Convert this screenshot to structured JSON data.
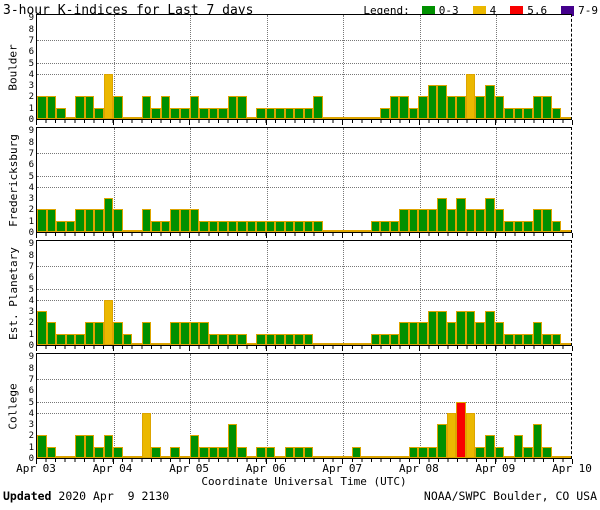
{
  "title": "3-hour K-indices for Last 7 days",
  "legend": {
    "label": "Legend:",
    "items": [
      {
        "label": "0-3",
        "color": "#009000"
      },
      {
        "label": "4",
        "color": "#ebb800"
      },
      {
        "label": "5,6",
        "color": "#f90000"
      },
      {
        "label": "7-9",
        "color": "#44008c"
      }
    ]
  },
  "footer": {
    "updated_label": "Updated",
    "updated_value": " 2020 Apr  9 2130",
    "source": "NOAA/SWPC Boulder, CO USA"
  },
  "chart_data": {
    "type": "bar",
    "title": "3-hour K-indices for Last 7 days",
    "xlabel": "Coordinate Universal Time (UTC)",
    "ylim": [
      0,
      9
    ],
    "grid": "dotted",
    "y_gridlines": [
      4,
      5,
      7
    ],
    "y_tick_labels": [
      "0",
      "1",
      "2",
      "3",
      "4",
      "5",
      "6",
      "7",
      "8",
      "9"
    ],
    "x_tick_labels": [
      "Apr 03",
      "Apr 04",
      "Apr 05",
      "Apr 06",
      "Apr 07",
      "Apr 08",
      "Apr 09",
      "Apr 10"
    ],
    "bars_per_day": 8,
    "bar_outline": "#dda400",
    "color_rules": [
      {
        "range": [
          0,
          3
        ],
        "color": "#009000"
      },
      {
        "range": [
          4,
          4
        ],
        "color": "#ebb800"
      },
      {
        "range": [
          5,
          6
        ],
        "color": "#f90000"
      },
      {
        "range": [
          7,
          9
        ],
        "color": "#44008c"
      }
    ],
    "panels": [
      {
        "station": "Boulder",
        "values": [
          2,
          2,
          1,
          0,
          2,
          2,
          1,
          4,
          2,
          0,
          0,
          2,
          1,
          2,
          1,
          1,
          2,
          1,
          1,
          1,
          2,
          2,
          0,
          1,
          1,
          1,
          1,
          1,
          1,
          2,
          0,
          0,
          0,
          0,
          0,
          0,
          1,
          2,
          2,
          1,
          2,
          3,
          3,
          2,
          2,
          4,
          2,
          3,
          2,
          1,
          1,
          1,
          2,
          2,
          1,
          0
        ]
      },
      {
        "station": "Fredericksburg",
        "values": [
          2,
          2,
          1,
          1,
          2,
          2,
          2,
          3,
          2,
          0,
          0,
          2,
          1,
          1,
          2,
          2,
          2,
          1,
          1,
          1,
          1,
          1,
          1,
          1,
          1,
          1,
          1,
          1,
          1,
          1,
          0,
          0,
          0,
          0,
          0,
          1,
          1,
          1,
          2,
          2,
          2,
          2,
          3,
          2,
          3,
          2,
          2,
          3,
          2,
          1,
          1,
          1,
          2,
          2,
          1,
          0
        ]
      },
      {
        "station": "Est. Planetary",
        "values": [
          3,
          2,
          1,
          1,
          1,
          2,
          2,
          4,
          2,
          1,
          0,
          2,
          0,
          0,
          2,
          2,
          2,
          2,
          1,
          1,
          1,
          1,
          0,
          1,
          1,
          1,
          1,
          1,
          1,
          0,
          0,
          0,
          0,
          0,
          0,
          1,
          1,
          1,
          2,
          2,
          2,
          3,
          3,
          2,
          3,
          3,
          2,
          3,
          2,
          1,
          1,
          1,
          2,
          1,
          1,
          0
        ]
      },
      {
        "station": "College",
        "values": [
          2,
          1,
          0,
          0,
          2,
          2,
          1,
          2,
          1,
          0,
          0,
          4,
          1,
          0,
          1,
          0,
          2,
          1,
          1,
          1,
          3,
          1,
          0,
          1,
          1,
          0,
          1,
          1,
          1,
          0,
          0,
          0,
          0,
          1,
          0,
          0,
          0,
          0,
          0,
          1,
          1,
          1,
          3,
          4,
          5,
          4,
          1,
          2,
          1,
          0,
          2,
          1,
          3,
          1,
          0,
          0
        ]
      }
    ]
  }
}
